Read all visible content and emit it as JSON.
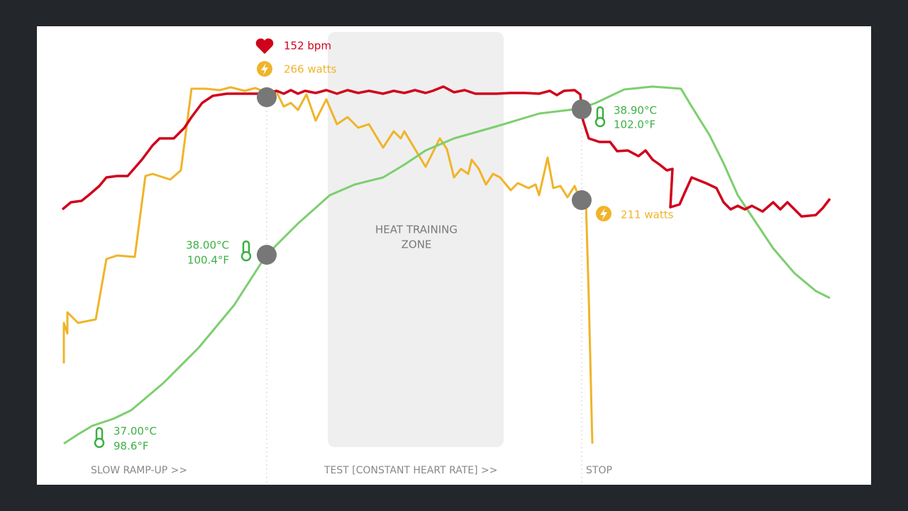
{
  "annotations": {
    "heart_rate": "152 bpm",
    "power_start": "266 watts",
    "temp_stop_c": "38.90°C",
    "temp_stop_f": "102.0°F",
    "power_stop": "211 watts",
    "temp_mid_c": "38.00°C",
    "temp_mid_f": "100.4°F",
    "temp_start_c": "37.00°C",
    "temp_start_f": "98.6°F"
  },
  "zone": {
    "lines": [
      "HEAT TRAINING",
      "ZONE"
    ]
  },
  "phases": [
    "SLOW RAMP-UP >>",
    "TEST [CONSTANT HEART RATE] >>",
    "STOP"
  ]
}
